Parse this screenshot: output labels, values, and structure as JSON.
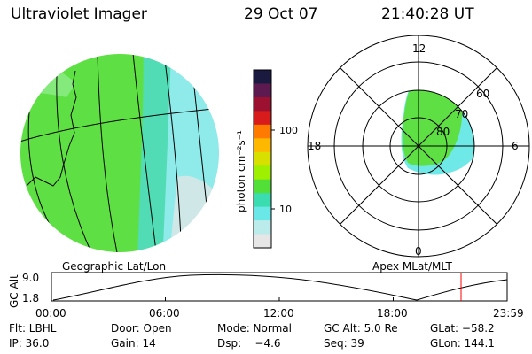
{
  "header": {
    "instrument": "Ultraviolet Imager",
    "date": "29 Oct 07",
    "time": "21:40:28 UT"
  },
  "colorbar": {
    "unit_label": "photon cm⁻²s⁻¹",
    "ticks": [
      "100",
      "10"
    ],
    "colors": [
      "#1a1a40",
      "#5c1a50",
      "#9c1030",
      "#d81c1c",
      "#ff7a00",
      "#ffb800",
      "#d8e000",
      "#9ef000",
      "#52e038",
      "#3adcb0",
      "#6ae8e8",
      "#bcebeb",
      "#e6e6e6"
    ]
  },
  "geo_panel": {
    "caption": "Geographic Lat/Lon"
  },
  "polar_panel": {
    "caption": "Apex MLat/MLT",
    "mlt_labels": [
      "12",
      "18",
      "6",
      "0"
    ],
    "lat_labels": [
      "60",
      "70",
      "80"
    ]
  },
  "altitude_plot": {
    "ylabel": "GC Alt",
    "yticks": [
      "9.0",
      "1.8"
    ],
    "xticks": [
      "00:00",
      "06:00",
      "12:00",
      "18:00",
      "23:59"
    ],
    "current_time_marker_color": "#ff0000"
  },
  "footer": {
    "row1": {
      "filter": "Flt: LBHL",
      "door": "Door: Open",
      "mode": "Mode: Normal",
      "gc_alt": "GC Alt: 5.0 Re",
      "glat": "GLat: −58.2"
    },
    "row2": {
      "ip": "IP: 36.0",
      "gain": "Gain: 14",
      "dsp": "Dsp:    −4.6",
      "seq": "Seq: 39",
      "glon": "GLon: 144.1"
    }
  }
}
